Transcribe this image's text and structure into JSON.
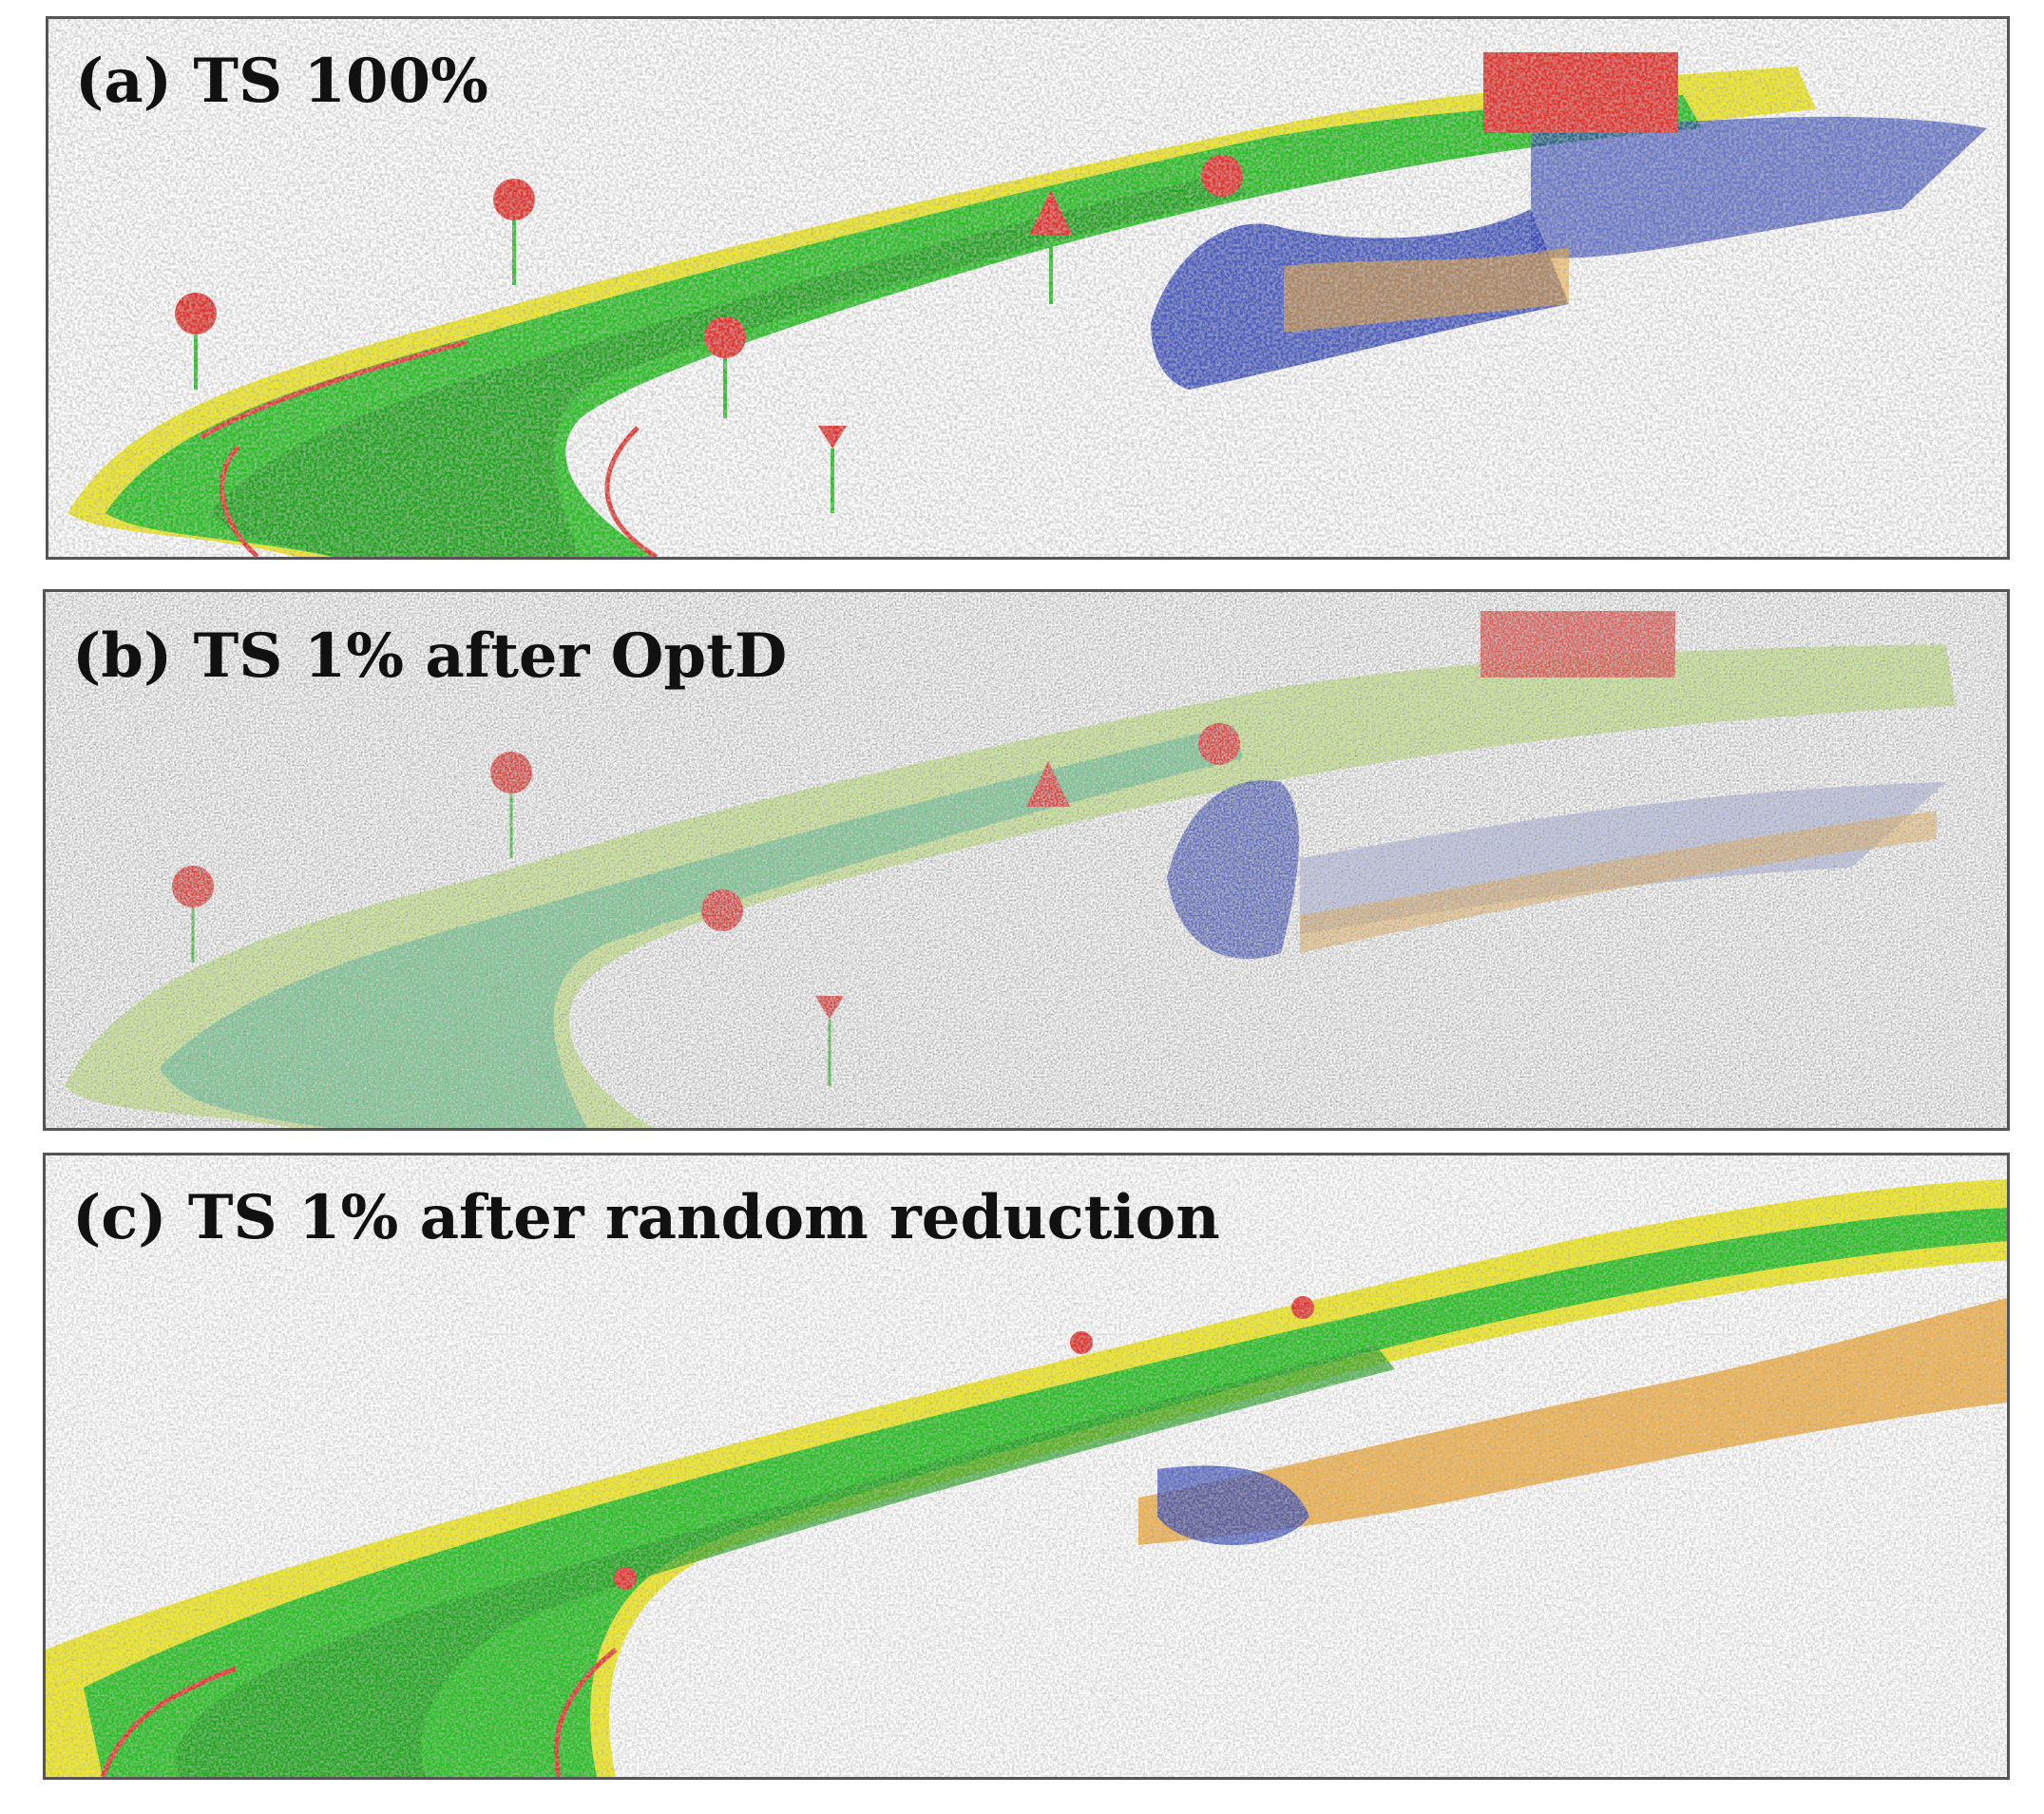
{
  "figure": {
    "panels": [
      {
        "id": "a",
        "label": "(a) TS 100%"
      },
      {
        "id": "b",
        "label": "(b) TS 1% after OptD"
      },
      {
        "id": "c",
        "label": "(c) TS 1% after random reduction"
      }
    ],
    "colors": {
      "road_green": "#22c21d",
      "bright_green": "#4ee62a",
      "yellow": "#f2ea1c",
      "orange": "#f0a020",
      "red": "#e8302a",
      "blue": "#2a3fb8",
      "teal": "#1fae8a"
    }
  }
}
